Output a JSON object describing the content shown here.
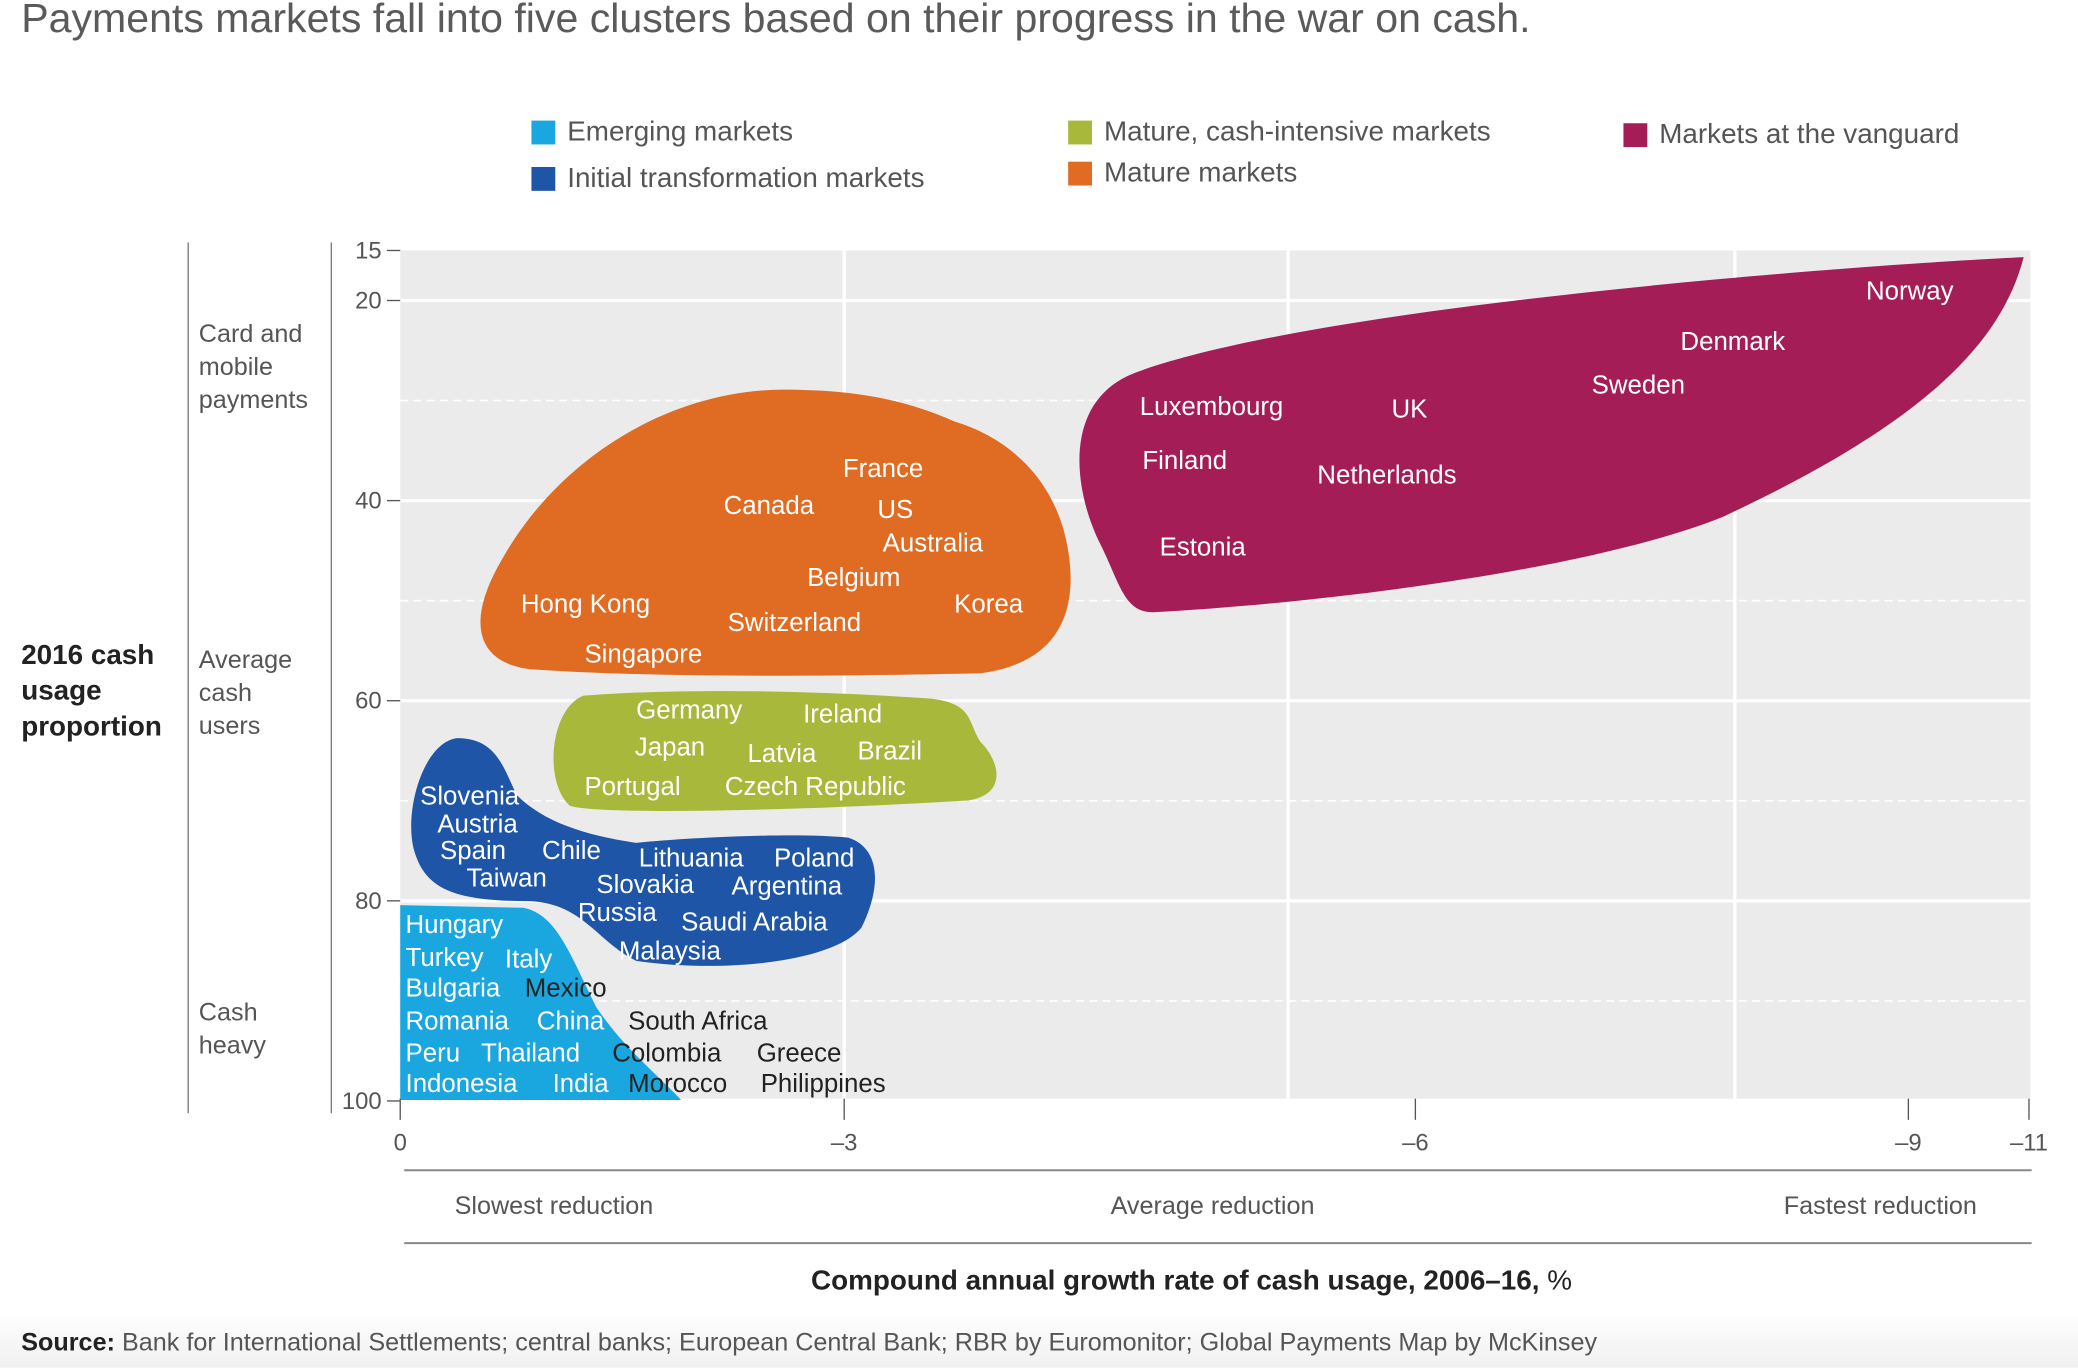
{
  "title": "Payments markets fall into five clusters based on their progress in the war on cash.",
  "legend": [
    {
      "label": "Emerging markets",
      "color": "#1aa7e0"
    },
    {
      "label": "Initial transformation markets",
      "color": "#1f55a6"
    },
    {
      "label": "Mature, cash-intensive markets",
      "color": "#a8b83a"
    },
    {
      "label": "Mature markets",
      "color": "#e06c24"
    },
    {
      "label": "Markets at the vanguard",
      "color": "#a51d56"
    }
  ],
  "y_side_labels": [
    "Card and mobile payments",
    "Average cash users",
    "Cash heavy"
  ],
  "x_bands": [
    "Slowest reduction",
    "Average reduction",
    "Fastest reduction"
  ],
  "source_label": "Source:",
  "source_text": "Bank for International Settlements; central banks; European Central Bank; RBR by Euromonitor; Global Payments Map by McKinsey",
  "chart_data": {
    "type": "scatter",
    "title": "Payments markets fall into five clusters based on their progress in the war on cash.",
    "ylabel": "2016 cash usage proportion",
    "xlabel": "Compound annual growth rate of cash usage, 2006–16,",
    "xlabel_unit": "%",
    "x_ticks": [
      "0",
      "–3",
      "–6",
      "–9",
      "–11"
    ],
    "y_ticks": [
      "15",
      "20",
      "40",
      "60",
      "80",
      "100"
    ],
    "xlim": [
      0,
      -11
    ],
    "ylim": [
      15,
      100
    ],
    "y_inverted": true,
    "grid": true,
    "legend_position": "top",
    "clusters": [
      {
        "name": "Markets at the vanguard",
        "countries": [
          "Norway",
          "Denmark",
          "Sweden",
          "Luxembourg",
          "UK",
          "Finland",
          "Netherlands",
          "Estonia"
        ]
      },
      {
        "name": "Mature markets",
        "countries": [
          "France",
          "Canada",
          "US",
          "Australia",
          "Belgium",
          "Hong Kong",
          "Korea",
          "Switzerland",
          "Singapore"
        ]
      },
      {
        "name": "Mature, cash-intensive markets",
        "countries": [
          "Germany",
          "Ireland",
          "Japan",
          "Latvia",
          "Brazil",
          "Portugal",
          "Czech Republic"
        ]
      },
      {
        "name": "Initial transformation markets",
        "countries": [
          "Slovenia",
          "Austria",
          "Spain",
          "Chile",
          "Lithuania",
          "Poland",
          "Taiwan",
          "Slovakia",
          "Argentina",
          "Russia",
          "Saudi Arabia",
          "Malaysia"
        ]
      },
      {
        "name": "Emerging markets",
        "countries": [
          "Hungary",
          "Turkey",
          "Italy",
          "Bulgaria",
          "Mexico",
          "Romania",
          "China",
          "South Africa",
          "Peru",
          "Thailand",
          "Colombia",
          "Greece",
          "Indonesia",
          "India",
          "Morocco",
          "Philippines"
        ]
      }
    ]
  }
}
